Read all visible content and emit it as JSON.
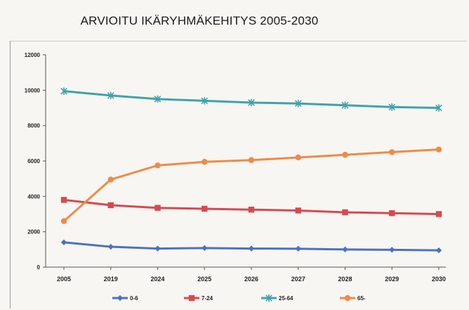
{
  "chart_data": {
    "type": "line",
    "title": "ARVIOITU IKÄRYHMÄKEHITYS 2005-2030",
    "xlabel": "",
    "ylabel": "",
    "categories": [
      "2005",
      "2019",
      "2024",
      "2025",
      "2026",
      "2027",
      "2028",
      "2029",
      "2030"
    ],
    "ylim": [
      0,
      12000
    ],
    "yticks": [
      "0",
      "2000",
      "4000",
      "6000",
      "8000",
      "10000",
      "12000"
    ],
    "grid": false,
    "legend_position": "bottom",
    "series": [
      {
        "name": "0-6",
        "color": "#4a72c4",
        "marker": "diamond",
        "values": [
          1400,
          1150,
          1050,
          1080,
          1050,
          1040,
          1000,
          980,
          950
        ]
      },
      {
        "name": "7-24",
        "color": "#d9484f",
        "marker": "square",
        "values": [
          3800,
          3500,
          3350,
          3300,
          3250,
          3200,
          3100,
          3050,
          3000
        ]
      },
      {
        "name": "25-64",
        "color": "#3fa3aa",
        "marker": "star",
        "values": [
          9950,
          9700,
          9500,
          9400,
          9300,
          9250,
          9150,
          9050,
          9000
        ]
      },
      {
        "name": "65-",
        "color": "#f08a46",
        "marker": "circle",
        "values": [
          2600,
          4950,
          5750,
          5950,
          6050,
          6200,
          6350,
          6500,
          6650
        ]
      }
    ]
  }
}
